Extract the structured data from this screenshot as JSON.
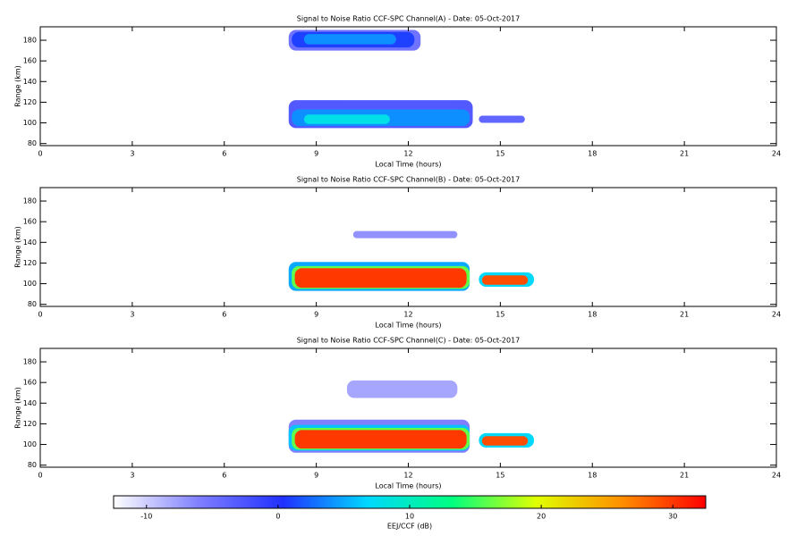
{
  "chart_data": [
    {
      "type": "heatmap",
      "title": "Signal to Noise Ratio CCF-SPC Channel(A) - Date: 05-Oct-2017",
      "xlabel": "Local Time (hours)",
      "ylabel": "Range (km)",
      "xlim": [
        0,
        24
      ],
      "xticks": [
        0,
        3,
        6,
        9,
        12,
        15,
        18,
        21,
        24
      ],
      "ylim": [
        78,
        193
      ],
      "yticks": [
        80,
        100,
        120,
        140,
        160,
        180
      ],
      "patches": [
        {
          "x": [
            8.1,
            12.4
          ],
          "y": [
            170,
            190
          ],
          "value": -5
        },
        {
          "x": [
            8.2,
            12.2
          ],
          "y": [
            173,
            188
          ],
          "value": 1
        },
        {
          "x": [
            8.6,
            11.6
          ],
          "y": [
            176,
            186
          ],
          "value": 4
        },
        {
          "x": [
            8.1,
            14.1
          ],
          "y": [
            95,
            122
          ],
          "value": -3
        },
        {
          "x": [
            8.2,
            14.0
          ],
          "y": [
            97,
            113
          ],
          "value": 4
        },
        {
          "x": [
            8.6,
            11.4
          ],
          "y": [
            99,
            108
          ],
          "value": 8
        },
        {
          "x": [
            14.3,
            15.8
          ],
          "y": [
            100,
            107
          ],
          "value": -4
        }
      ]
    },
    {
      "type": "heatmap",
      "title": "Signal to Noise Ratio CCF-SPC Channel(B) - Date: 05-Oct-2017",
      "xlabel": "Local Time (hours)",
      "ylabel": "Range (km)",
      "xlim": [
        0,
        24
      ],
      "xticks": [
        0,
        3,
        6,
        9,
        12,
        15,
        18,
        21,
        24
      ],
      "ylim": [
        78,
        193
      ],
      "yticks": [
        80,
        100,
        120,
        140,
        160,
        180
      ],
      "patches": [
        {
          "x": [
            10.2,
            13.6
          ],
          "y": [
            144,
            151
          ],
          "value": -7
        },
        {
          "x": [
            8.1,
            14.0
          ],
          "y": [
            93,
            121
          ],
          "value": 5
        },
        {
          "x": [
            8.2,
            14.0
          ],
          "y": [
            95,
            117
          ],
          "value": 16
        },
        {
          "x": [
            8.3,
            13.9
          ],
          "y": [
            96,
            115
          ],
          "value": 30
        },
        {
          "x": [
            14.3,
            16.1
          ],
          "y": [
            97,
            111
          ],
          "value": 7
        },
        {
          "x": [
            14.4,
            15.9
          ],
          "y": [
            99,
            108
          ],
          "value": 29
        }
      ]
    },
    {
      "type": "heatmap",
      "title": "Signal to Noise Ratio CCF-SPC Channel(C) - Date: 05-Oct-2017",
      "xlabel": "Local Time (hours)",
      "ylabel": "Range (km)",
      "xlim": [
        0,
        24
      ],
      "xticks": [
        0,
        3,
        6,
        9,
        12,
        15,
        18,
        21,
        24
      ],
      "ylim": [
        78,
        193
      ],
      "yticks": [
        80,
        100,
        120,
        140,
        160,
        180
      ],
      "patches": [
        {
          "x": [
            10.0,
            13.6
          ],
          "y": [
            145,
            162
          ],
          "value": -8
        },
        {
          "x": [
            8.1,
            14.0
          ],
          "y": [
            92,
            124
          ],
          "value": -6
        },
        {
          "x": [
            8.1,
            14.0
          ],
          "y": [
            94,
            119
          ],
          "value": 6
        },
        {
          "x": [
            8.2,
            14.0
          ],
          "y": [
            95,
            116
          ],
          "value": 16
        },
        {
          "x": [
            8.3,
            13.9
          ],
          "y": [
            96,
            114
          ],
          "value": 30
        },
        {
          "x": [
            14.3,
            16.1
          ],
          "y": [
            97,
            111
          ],
          "value": 7
        },
        {
          "x": [
            14.4,
            15.9
          ],
          "y": [
            99,
            108
          ],
          "value": 29
        }
      ]
    },
    {
      "type": "colorbar",
      "xlabel": "EEJ/CCF (dB)",
      "xlim": [
        -12.5,
        32.5
      ],
      "xticks": [
        -10,
        0,
        10,
        20,
        30
      ],
      "colormap": [
        "#ffffff",
        "#8080ff",
        "#2030ff",
        "#00d8ff",
        "#00ff80",
        "#e0ff00",
        "#ff9000",
        "#ff0000"
      ]
    }
  ]
}
